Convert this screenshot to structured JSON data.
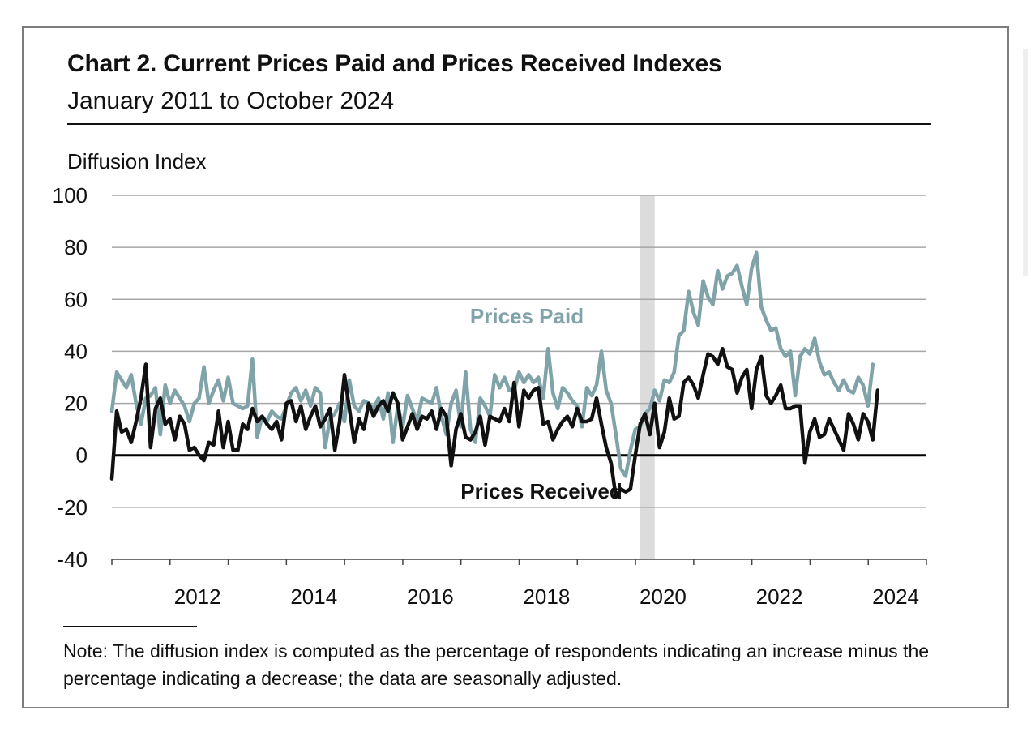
{
  "title": "Chart 2. Current Prices Paid and Prices Received Indexes",
  "subtitle": "January 2011 to October 2024",
  "note": "Note: The diffusion index is computed as the percentage of respondents indicating an increase minus the percentage indicating a decrease; the data are seasonally adjusted.",
  "chart_data": {
    "type": "line",
    "ylabel": "Diffusion Index",
    "ylim": [
      -40,
      100
    ],
    "yticks": [
      "100",
      "80",
      "60",
      "40",
      "20",
      "0",
      "-20",
      "-40"
    ],
    "xtick_labels": [
      "2012",
      "2014",
      "2016",
      "2018",
      "2020",
      "2022",
      "2024"
    ],
    "recession_shade": {
      "start": 2020.08,
      "end": 2020.33
    },
    "colors": {
      "paid": "#7fa3a8",
      "received": "#111111",
      "shade": "#dcdcdc",
      "grid": "#a6a6a6"
    },
    "series": [
      {
        "name": "Prices Paid",
        "label": "Prices Paid",
        "start": 2011.0,
        "step": 0.0833,
        "values": [
          17,
          32,
          29,
          26,
          31,
          20,
          12,
          22,
          23,
          26,
          8,
          27,
          20,
          25,
          22,
          19,
          13,
          20,
          22,
          34,
          20,
          25,
          29,
          21,
          30,
          20,
          19,
          18,
          19,
          37,
          7,
          15,
          13,
          17,
          15,
          14,
          19,
          24,
          26,
          21,
          25,
          19,
          26,
          24,
          3,
          14,
          16,
          20,
          13,
          29,
          19,
          17,
          21,
          20,
          18,
          22,
          14,
          24,
          5,
          19,
          11,
          23,
          18,
          13,
          22,
          21,
          20,
          26,
          15,
          8,
          20,
          25,
          11,
          32,
          10,
          5,
          22,
          19,
          15,
          31,
          26,
          30,
          25,
          25,
          32,
          28,
          31,
          28,
          30,
          22,
          41,
          24,
          18,
          26,
          24,
          21,
          19,
          11,
          26,
          23,
          27,
          40,
          25,
          20,
          8,
          -5,
          -8,
          2,
          10,
          11,
          16,
          18,
          25,
          21,
          29,
          28,
          32,
          46,
          48,
          63,
          55,
          50,
          67,
          61,
          58,
          71,
          64,
          69,
          70,
          73,
          65,
          58,
          72,
          78,
          57,
          52,
          48,
          49,
          41,
          38,
          40,
          23,
          38,
          41,
          39,
          45,
          36,
          31,
          32,
          28,
          25,
          29,
          25,
          24,
          30,
          27,
          19,
          35
        ]
      },
      {
        "name": "Prices Received",
        "label": "Prices Received",
        "start": 2011.0,
        "step": 0.0833,
        "values": [
          -9,
          17,
          9,
          10,
          5,
          13,
          22,
          35,
          3,
          18,
          22,
          12,
          14,
          6,
          15,
          12,
          2,
          3,
          0,
          -2,
          5,
          4,
          17,
          3,
          13,
          2,
          2,
          12,
          10,
          18,
          13,
          15,
          12,
          10,
          13,
          6,
          20,
          21,
          13,
          19,
          10,
          15,
          19,
          11,
          14,
          18,
          2,
          13,
          31,
          18,
          5,
          14,
          10,
          20,
          15,
          19,
          21,
          17,
          24,
          20,
          6,
          11,
          16,
          10,
          15,
          14,
          17,
          10,
          18,
          15,
          -4,
          10,
          16,
          7,
          6,
          9,
          15,
          4,
          15,
          14,
          13,
          18,
          13,
          28,
          11,
          25,
          22,
          25,
          26,
          12,
          13,
          6,
          10,
          13,
          15,
          11,
          18,
          13,
          13,
          14,
          22,
          12,
          3,
          -3,
          -16,
          -13,
          -14,
          -13,
          0,
          12,
          16,
          8,
          20,
          3,
          9,
          22,
          14,
          15,
          28,
          30,
          27,
          22,
          31,
          39,
          38,
          35,
          41,
          34,
          33,
          24,
          30,
          33,
          18,
          33,
          38,
          23,
          20,
          23,
          27,
          18,
          18,
          19,
          19,
          -3,
          9,
          14,
          7,
          8,
          14,
          10,
          6,
          2,
          16,
          12,
          6,
          16,
          13,
          6,
          25
        ]
      }
    ]
  }
}
